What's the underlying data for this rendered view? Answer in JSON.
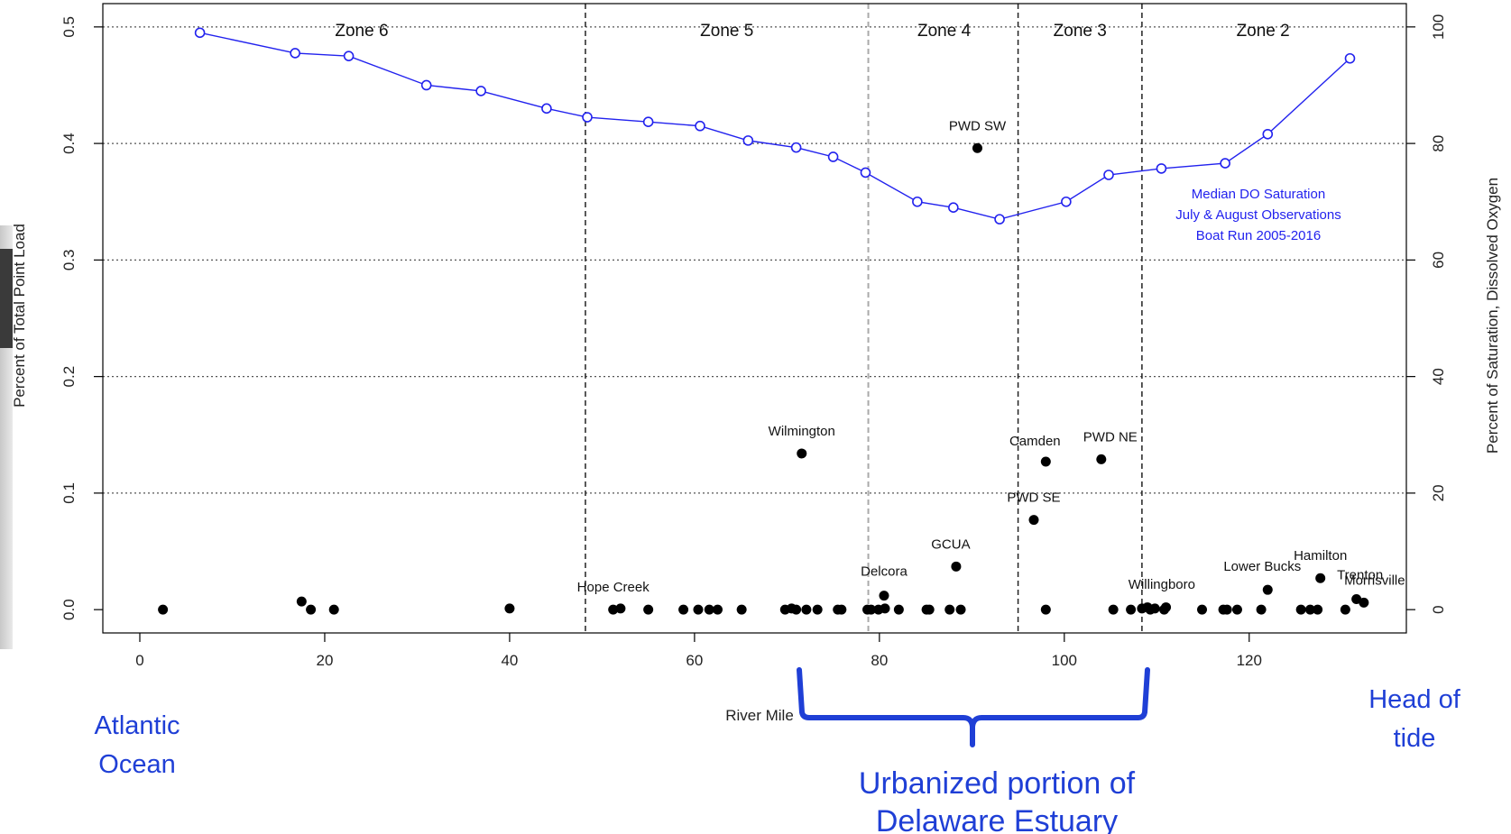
{
  "chart_data": {
    "type": "scatter",
    "xlabel": "River Mile",
    "ylabel": "Percent of Total Point Load",
    "y2label": "Percent of Saturation, Dissolved Oxygen",
    "xlim": [
      -4,
      137
    ],
    "ylim": [
      -0.02,
      0.52
    ],
    "y2lim": [
      -4,
      104
    ],
    "xticks": [
      0,
      20,
      40,
      60,
      80,
      100,
      120
    ],
    "yticks": [
      0.0,
      0.1,
      0.2,
      0.3,
      0.4,
      0.5
    ],
    "y2ticks": [
      0,
      20,
      40,
      60,
      80,
      100
    ],
    "grid": "horizontal dotted",
    "zone_boundaries": [
      {
        "x": 48.2,
        "style": "dashed"
      },
      {
        "x": 78.8,
        "style": "gray-dashed"
      },
      {
        "x": 95.0,
        "style": "dashed"
      },
      {
        "x": 108.4,
        "style": "dashed"
      }
    ],
    "zones": [
      {
        "label": "Zone 6",
        "x": 24
      },
      {
        "label": "Zone 5",
        "x": 63.5
      },
      {
        "label": "Zone 4",
        "x": 87
      },
      {
        "label": "Zone 3",
        "x": 101.7
      },
      {
        "label": "Zone 2",
        "x": 121.5
      }
    ],
    "do_series": {
      "name": "Median DO Saturation",
      "color": "#2222ee",
      "x": [
        6.5,
        16.8,
        22.6,
        31.0,
        36.9,
        44.0,
        48.4,
        55.0,
        60.6,
        65.8,
        71.0,
        75.0,
        78.5,
        84.1,
        88.0,
        93.0,
        100.2,
        104.8,
        110.5,
        117.4,
        122.0,
        130.9
      ],
      "y": [
        99,
        95.5,
        95,
        90,
        89,
        86,
        84.5,
        83.7,
        83,
        80.5,
        79.3,
        77.7,
        75,
        70,
        69,
        67,
        70,
        74.6,
        75.7,
        76.6,
        81.6,
        94.6
      ]
    },
    "do_legend_lines": [
      "Median DO Saturation",
      "July & August Observations",
      "Boat Run 2005-2016"
    ],
    "point_sources": {
      "name": "Percent of Total Point Load",
      "color": "#000000",
      "x": [
        2.5,
        17.5,
        18.5,
        21.0,
        40.0,
        51.2,
        52.0,
        55.0,
        58.8,
        60.4,
        61.6,
        62.5,
        65.1,
        69.8,
        70.5,
        71.0,
        71.6,
        72.1,
        73.3,
        75.5,
        75.9,
        78.7,
        79.1,
        79.9,
        80.5,
        80.6,
        82.1,
        85.1,
        85.4,
        87.6,
        88.3,
        88.8,
        90.6,
        96.7,
        98.0,
        98.0,
        104.0,
        105.3,
        107.2,
        108.4,
        109.0,
        109.3,
        109.8,
        110.8,
        111.0,
        114.9,
        117.2,
        117.6,
        118.7,
        121.3,
        122.0,
        125.6,
        126.6,
        127.4,
        127.7,
        130.4,
        131.6,
        132.4
      ],
      "y": [
        0.0,
        0.007,
        0.0,
        0.0,
        0.001,
        0.0,
        0.001,
        0.0,
        0.0,
        0.0,
        0.0,
        0.0,
        0.0,
        0.0,
        0.001,
        0.0,
        0.134,
        0.0,
        0.0,
        0.0,
        0.0,
        0.0,
        0.0,
        0.0,
        0.012,
        0.001,
        0.0,
        0.0,
        0.0,
        0.0,
        0.037,
        0.0,
        0.396,
        0.077,
        0.127,
        0.0,
        0.129,
        0.0,
        0.0,
        0.001,
        0.002,
        0.0,
        0.001,
        0.0,
        0.002,
        0.0,
        0.0,
        0.0,
        0.0,
        0.0,
        0.017,
        0.0,
        0.0,
        0.0,
        0.027,
        0.0,
        0.009,
        0.006
      ]
    },
    "point_labels": [
      {
        "text": "PWD SW",
        "x": 90.6,
        "y": 0.396
      },
      {
        "text": "Wilmington",
        "x": 71.6,
        "y": 0.134
      },
      {
        "text": "Camden",
        "x": 98.0,
        "y": 0.127
      },
      {
        "text": "PWD NE",
        "x": 104.0,
        "y": 0.129
      },
      {
        "text": "PWD SE",
        "x": 96.7,
        "y": 0.077
      },
      {
        "text": "GCUA",
        "x": 88.3,
        "y": 0.037
      },
      {
        "text": "Delcora",
        "x": 80.5,
        "y": 0.012
      },
      {
        "text": "Hope Creek",
        "x": 51.2,
        "y": 0.0
      },
      {
        "text": "Willingboro",
        "x": 108.4,
        "y": 0.001
      },
      {
        "text": "Lower Bucks",
        "x": 122.0,
        "y": 0.017
      },
      {
        "text": "Hamilton",
        "x": 127.7,
        "y": 0.027
      },
      {
        "text": "Trenton",
        "x": 131.6,
        "y": 0.009
      },
      {
        "text": "Morrisville",
        "x": 132.4,
        "y": 0.006
      }
    ]
  },
  "annotations": {
    "atlantic": [
      "Atlantic",
      "Ocean"
    ],
    "head_of_tide": [
      "Head of",
      "tide"
    ],
    "urbanized": [
      "Urbanized portion of",
      "Delaware Estuary"
    ],
    "color": "#1f3fd6"
  }
}
